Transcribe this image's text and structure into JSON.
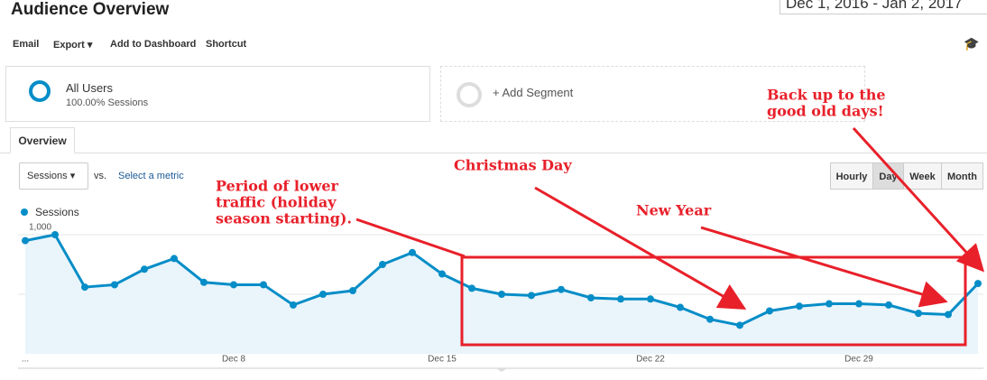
{
  "header": {
    "title": "Audience Overview",
    "date_range": "Dec 1, 2016 - Jan 2, 2017"
  },
  "toolbar": [
    "Email",
    "Export",
    "Add to Dashboard",
    "Shortcut"
  ],
  "segments": {
    "name": "All Users",
    "detail": "100.00% Sessions",
    "add": "+ Add Segment"
  },
  "tabs": [
    "Overview"
  ],
  "controls": {
    "metric": "Sessions",
    "vs": "vs.",
    "select": "Select a metric",
    "granularity": [
      "Hourly",
      "Day",
      "Week",
      "Month"
    ]
  },
  "chart_data": {
    "type": "line",
    "categories": [
      "...",
      null,
      null,
      null,
      null,
      null,
      null,
      "Dec 8",
      null,
      null,
      null,
      null,
      null,
      null,
      "Dec 15",
      null,
      null,
      null,
      null,
      null,
      null,
      "Dec 22",
      null,
      null,
      null,
      null,
      null,
      null,
      "Dec 29",
      null,
      null,
      null,
      null
    ],
    "series": [
      {
        "name": "Sessions",
        "color": "#058dc7",
        "values": [
          950,
          1000,
          560,
          580,
          710,
          800,
          600,
          580,
          580,
          410,
          500,
          530,
          750,
          850,
          670,
          550,
          500,
          490,
          540,
          470,
          460,
          460,
          390,
          290,
          240,
          360,
          400,
          420,
          420,
          410,
          340,
          330,
          590
        ]
      }
    ],
    "ylim": [
      0,
      1050
    ],
    "yticks": [
      500,
      {
        "value": 1000,
        "label": "1,000"
      }
    ],
    "grid": true,
    "annotations": [
      [
        "Period of lower",
        "traffic (holiday",
        "season starting)."
      ],
      [
        "Christmas Day"
      ],
      [
        "New Year"
      ],
      [
        "Back up to the",
        "good old days!"
      ]
    ]
  }
}
